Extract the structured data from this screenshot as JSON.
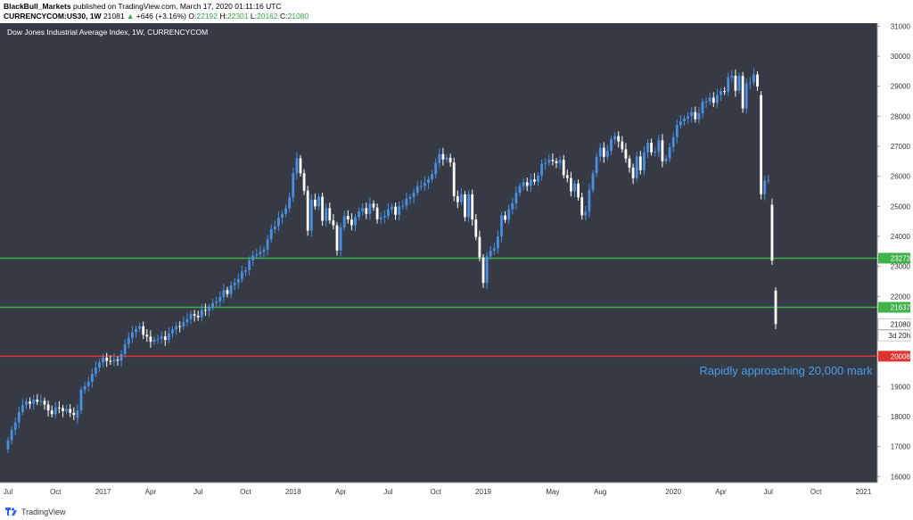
{
  "header": {
    "author": "BlackBull_Markets",
    "published": "published on TradingView.com, March 17, 2020 01:11:16 UTC",
    "symbol": "CURRENCYCOM:US30, 1W",
    "price": "21081",
    "change_arrow": "▲",
    "change": "+646 (+3.16%)",
    "o_label": "O:",
    "o_value": "22192",
    "h_label": "H:",
    "h_value": "22301",
    "l_label": "L:",
    "l_value": "20162",
    "c_label": "C:",
    "c_value": "21080"
  },
  "footer": {
    "brand": "TradingView",
    "icon": "tradingview-logo-icon"
  },
  "colors": {
    "background": "#363a45",
    "up_candle": "#4a90e2",
    "down_candle": "#ffffff",
    "support_line": "#3fb24a",
    "red_line": "#e0332f",
    "annotation": "#4a9ee8"
  },
  "chart_data": {
    "type": "candlestick",
    "title": "Dow Jones Industrial Average Index, 1W, CURRENCYCOM",
    "ylim": [
      15800,
      31100
    ],
    "y_ticks": [
      16000,
      17000,
      18000,
      19000,
      20000,
      21000,
      22000,
      23000,
      24000,
      25000,
      26000,
      27000,
      28000,
      29000,
      30000,
      31000
    ],
    "x_ticks": [
      "Jul",
      "Oct",
      "2017",
      "Apr",
      "Jul",
      "Oct",
      "2018",
      "Apr",
      "Jul",
      "Oct",
      "2019",
      "May",
      "Aug",
      "2020",
      "Apr",
      "Jul",
      "Oct",
      "2021"
    ],
    "x_tick_weeks": [
      0,
      13,
      26,
      39,
      52,
      65,
      78,
      91,
      104,
      117,
      130,
      149,
      162,
      182,
      195,
      208,
      221,
      234
    ],
    "horizontal_lines": [
      {
        "value": 23273,
        "label": "23273",
        "color": "#3fb24a"
      },
      {
        "value": 21637,
        "label": "21637",
        "color": "#3fb24a"
      },
      {
        "value": 20008,
        "label": "20008",
        "color": "#e0332f"
      }
    ],
    "price_tags": [
      {
        "value": 21080,
        "label": "21080"
      },
      {
        "value": 20700,
        "label": "3d 20h"
      }
    ],
    "annotation": {
      "text": "Rapidly approaching 20,000 mark",
      "value": 19550,
      "week": 194
    },
    "closes": [
      17200,
      17550,
      17800,
      18150,
      18380,
      18500,
      18420,
      18560,
      18490,
      18520,
      18400,
      18200,
      18080,
      18300,
      18280,
      18180,
      18250,
      18120,
      18050,
      18200,
      18890,
      19010,
      19160,
      19420,
      19630,
      19800,
      19960,
      19850,
      19830,
      19890,
      19860,
      20080,
      20410,
      20620,
      20810,
      20920,
      21000,
      20720,
      20660,
      20490,
      20560,
      20590,
      20670,
      20550,
      20760,
      20900,
      21010,
      21000,
      21140,
      21240,
      21410,
      21360,
      21300,
      21550,
      21520,
      21640,
      21780,
      21830,
      21980,
      22210,
      22080,
      22370,
      22450,
      22580,
      22820,
      22870,
      23200,
      23360,
      23400,
      23480,
      23560,
      23900,
      24240,
      24340,
      24620,
      24750,
      24940,
      25300,
      26100,
      26600,
      26100,
      25520,
      24190,
      25220,
      25000,
      25320,
      24520,
      24940,
      24530,
      24370,
      23530,
      24300,
      24680,
      24560,
      24370,
      24640,
      24830,
      24940,
      24750,
      25090,
      24960,
      24570,
      24630,
      24680,
      24900,
      24990,
      24720,
      25000,
      25020,
      25250,
      25300,
      25450,
      25670,
      25680,
      25780,
      25900,
      26070,
      26440,
      26740,
      26560,
      26620,
      26460,
      25340,
      25140,
      25400,
      24640,
      25400,
      24560,
      23980,
      23300,
      22450,
      23340,
      23520,
      23600,
      24000,
      24700,
      24550,
      24900,
      25100,
      25450,
      25670,
      25800,
      25680,
      25900,
      25820,
      26030,
      26420,
      26450,
      26550,
      26500,
      26440,
      26550,
      26040,
      25940,
      25500,
      25760,
      25300,
      24700,
      24820,
      25550,
      26100,
      26650,
      26950,
      26650,
      26850,
      27230,
      27340,
      27160,
      26900,
      26590,
      26290,
      25940,
      26660,
      26200,
      26800,
      27120,
      26800,
      26820,
      27200,
      26500,
      26600,
      26970,
      27300,
      27700,
      27830,
      27920,
      28000,
      28140,
      27900,
      28100,
      28480,
      28490,
      28620,
      28450,
      28710,
      28840,
      28820,
      29290,
      29350,
      28850,
      29340,
      28260,
      29100,
      29120,
      29390,
      28990,
      25400,
      25860,
      25870,
      23190,
      21081
    ],
    "opens": [
      16900,
      17210,
      17550,
      17800,
      18150,
      18380,
      18500,
      18420,
      18560,
      18490,
      18520,
      18400,
      18200,
      18080,
      18300,
      18280,
      18180,
      18250,
      18120,
      17950,
      18200,
      18890,
      19010,
      19160,
      19420,
      19630,
      19800,
      19960,
      19850,
      19830,
      19890,
      19860,
      20080,
      20410,
      20620,
      20810,
      20920,
      21000,
      20720,
      20660,
      20490,
      20560,
      20590,
      20670,
      20550,
      20760,
      20900,
      21010,
      21000,
      21140,
      21240,
      21410,
      21360,
      21300,
      21550,
      21520,
      21640,
      21780,
      21830,
      21980,
      22210,
      22080,
      22370,
      22450,
      22580,
      22820,
      22870,
      23200,
      23360,
      23400,
      23480,
      23560,
      23900,
      24240,
      24340,
      24620,
      24750,
      24940,
      25300,
      26100,
      26600,
      26100,
      25520,
      24190,
      25220,
      25000,
      25320,
      24520,
      24940,
      24530,
      24370,
      23530,
      24300,
      24680,
      24560,
      24370,
      24640,
      24830,
      24940,
      24750,
      25090,
      24960,
      24570,
      24630,
      24680,
      24900,
      24990,
      24720,
      25000,
      25020,
      25250,
      25300,
      25450,
      25670,
      25680,
      25780,
      25900,
      26070,
      26440,
      26740,
      26560,
      26620,
      26460,
      25340,
      25140,
      25400,
      24640,
      25400,
      24560,
      23980,
      23300,
      22450,
      23340,
      23520,
      23600,
      24000,
      24700,
      24550,
      24900,
      25100,
      25450,
      25670,
      25800,
      25680,
      25900,
      25820,
      26030,
      26420,
      26450,
      26550,
      26500,
      26440,
      26550,
      26040,
      25940,
      25500,
      25760,
      25300,
      24700,
      24820,
      25550,
      26100,
      26650,
      26950,
      26650,
      26850,
      27230,
      27340,
      27160,
      26900,
      26590,
      26290,
      25940,
      26660,
      26200,
      26800,
      27120,
      26800,
      26820,
      27200,
      26500,
      26600,
      26970,
      27300,
      27700,
      27830,
      27920,
      28000,
      28140,
      27900,
      28100,
      28480,
      28490,
      28620,
      28450,
      28710,
      28840,
      28820,
      29290,
      29350,
      28850,
      29340,
      28260,
      29100,
      29120,
      29390,
      28700,
      25400,
      25860,
      25050,
      22192
    ]
  }
}
